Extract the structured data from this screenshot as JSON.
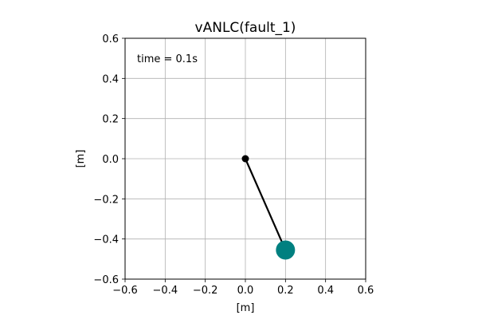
{
  "chart_data": {
    "type": "scatter",
    "title": "vANLC(fault_1)",
    "xlabel": "[m]",
    "ylabel": "[m]",
    "xlim": [
      -0.6,
      0.6
    ],
    "ylim": [
      -0.6,
      0.6
    ],
    "xticks": [
      -0.6,
      -0.4,
      -0.2,
      0.0,
      0.2,
      0.4,
      0.6
    ],
    "yticks": [
      -0.6,
      -0.4,
      -0.2,
      0.0,
      0.2,
      0.4,
      0.6
    ],
    "xtick_labels": [
      "−0.6",
      "−0.4",
      "−0.2",
      "0.0",
      "0.2",
      "0.4",
      "0.6"
    ],
    "ytick_labels": [
      "−0.6",
      "−0.4",
      "−0.2",
      "0.0",
      "0.2",
      "0.4",
      "0.6"
    ],
    "grid": true,
    "annotation": "time = 0.1s",
    "pivot": {
      "x": 0.0,
      "y": 0.0,
      "color": "#000000"
    },
    "bob": {
      "x": 0.2,
      "y": -0.455,
      "color": "#008080"
    },
    "rod_color": "#000000"
  }
}
